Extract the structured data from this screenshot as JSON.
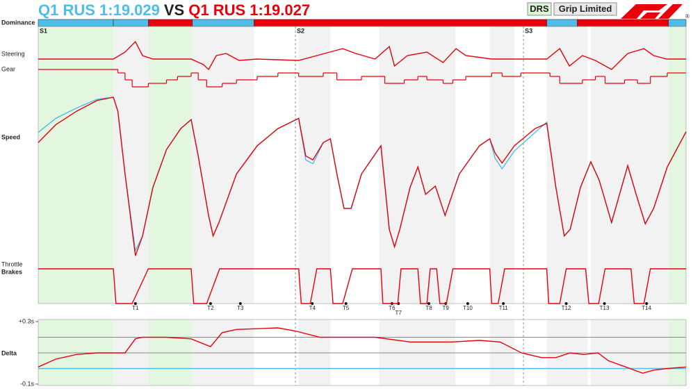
{
  "header": {
    "title_a": "Q1 RUS 1:19.029",
    "vs": "VS",
    "title_b": "Q1 RUS 1:19.027",
    "badges": [
      "DRS",
      "Grip Limited"
    ],
    "mark": "®"
  },
  "chart_data": {
    "type": "telemetry",
    "xlim": [
      0,
      100
    ],
    "sectors": [
      {
        "label": "S1",
        "x": 0
      },
      {
        "label": "S2",
        "x": 39.7
      },
      {
        "label": "S3",
        "x": 74.9
      }
    ],
    "zones": [
      {
        "x": [
          0,
          11.6
        ],
        "color": "#e3f6df"
      },
      {
        "x": [
          11.6,
          17.0
        ],
        "color": "#f2f2f2"
      },
      {
        "x": [
          17.0,
          23.6
        ],
        "color": "#e3f6df"
      },
      {
        "x": [
          23.6,
          33.3
        ],
        "color": "#f2f2f2"
      },
      {
        "x": [
          40.2,
          45.1
        ],
        "color": "#f2f2f2"
      },
      {
        "x": [
          52.6,
          64.4
        ],
        "color": "#f2f2f2"
      },
      {
        "x": [
          69.7,
          73.5
        ],
        "color": "#f2f2f2"
      },
      {
        "x": [
          78.5,
          84.8
        ],
        "color": "#f2f2f2"
      },
      {
        "x": [
          85.3,
          97.3
        ],
        "color": "#f2f2f2"
      },
      {
        "x": [
          97.3,
          100
        ],
        "color": "#e3f6df"
      }
    ],
    "corners": [
      {
        "label": "T1",
        "x": 15.0
      },
      {
        "label": "T2",
        "x": 26.6
      },
      {
        "label": "T3",
        "x": 31.2
      },
      {
        "label": "T4",
        "x": 42.3
      },
      {
        "label": "T5",
        "x": 47.5
      },
      {
        "label": "T6",
        "x": 54.6
      },
      {
        "label": "T7",
        "x": 55.6
      },
      {
        "label": "T8",
        "x": 60.3
      },
      {
        "label": "T9",
        "x": 62.9
      },
      {
        "label": "T10",
        "x": 66.3
      },
      {
        "label": "T11",
        "x": 71.8
      },
      {
        "label": "T12",
        "x": 81.5
      },
      {
        "label": "T13",
        "x": 87.4
      },
      {
        "label": "T14",
        "x": 93.9
      }
    ],
    "dominance": {
      "label": "Dominance",
      "segments": [
        {
          "x": [
            0,
            11.6
          ],
          "color": "#4fbde9"
        },
        {
          "x": [
            11.6,
            17.0
          ],
          "color": "#4fbde9"
        },
        {
          "x": [
            17.0,
            23.8
          ],
          "color": "#e8000b"
        },
        {
          "x": [
            23.8,
            33.3
          ],
          "color": "#4fbde9"
        },
        {
          "x": [
            33.3,
            78.5
          ],
          "color": "#e8000b"
        },
        {
          "x": [
            78.5,
            83.2
          ],
          "color": "#4fbde9"
        },
        {
          "x": [
            83.2,
            97.3
          ],
          "color": "#e8000b"
        },
        {
          "x": [
            97.3,
            100
          ],
          "color": "#4fbde9"
        }
      ]
    },
    "panels": [
      {
        "labels": [
          "Steering"
        ],
        "style": "line",
        "ylim": [
          -25,
          25
        ],
        "series": [
          {
            "color": "#e8000b",
            "x": [
              0,
              11.6,
              13.4,
              15.0,
              16.1,
              17.7,
              23.6,
              25.5,
              26.3,
              27.5,
              29,
              31,
              33.8,
              40.2,
              45,
              47,
              49,
              52,
              54.2,
              55,
              57,
              60,
              62.5,
              64.5,
              66,
              70,
              73.5,
              78.5,
              80.5,
              82,
              84,
              86,
              88.5,
              91,
              93.5,
              95,
              97,
              100
            ],
            "values": [
              0,
              0,
              10,
              25,
              5,
              0,
              0,
              -8,
              -15,
              5,
              8,
              -2,
              0,
              -2,
              10,
              15,
              8,
              0,
              18,
              -10,
              5,
              10,
              -5,
              15,
              5,
              0,
              0,
              0,
              15,
              -10,
              5,
              -2,
              -15,
              8,
              15,
              5,
              0,
              0
            ]
          }
        ]
      },
      {
        "labels": [
          "Gear"
        ],
        "style": "step",
        "ylim": [
          2,
          9
        ],
        "series": [
          {
            "color": "#e8000b",
            "x": [
              0,
              12.3,
              13.4,
              14.5,
              17.0,
              19.8,
              21.5,
              23.6,
              24.7,
              26.0,
              28.4,
              30.6,
              33.8,
              37.0,
              40.2,
              44.0,
              46.1,
              49.9,
              53.5,
              56.5,
              58.6,
              60.0,
              62.5,
              64.0,
              66.0,
              70.0,
              71.6,
              74.5,
              79.0,
              80.5,
              84.0,
              86.0,
              87.5,
              90.5,
              92.5,
              94.5,
              97.1,
              100
            ],
            "values": [
              8,
              7,
              5,
              3,
              4,
              5,
              6,
              7,
              5,
              3,
              4,
              5,
              6,
              7,
              6,
              7,
              5,
              6,
              4,
              5,
              6,
              5,
              4,
              5,
              6,
              7,
              6,
              7,
              6,
              4,
              5,
              6,
              4,
              5,
              4,
              6,
              7,
              7
            ]
          }
        ]
      },
      {
        "labels": [
          "Speed"
        ],
        "style": "line",
        "ylim": [
          60,
          330
        ],
        "series": [
          {
            "color": "#4fbde9",
            "x": [
              0,
              2.7,
              5.9,
              9.1,
              11.6,
              12.3,
              13.4,
              15.0,
              16.1,
              17.7,
              19.8,
              22.0,
              23.6,
              24.7,
              26.3,
              27.0,
              27.9,
              30.6,
              33.8,
              37.0,
              40.2,
              41.3,
              42.4,
              44.0,
              45.1,
              46.1,
              47.2,
              48.3,
              49.9,
              52.9,
              54.2,
              55.0,
              55.8,
              57.4,
              58.6,
              59.8,
              61.3,
              62.8,
              65.0,
              68.1,
              69.7,
              70.5,
              71.6,
              73.5,
              76.7,
              78.5,
              79.9,
              81.2,
              82.1,
              83.7,
              85.3,
              86.6,
              88.5,
              91.0,
              92.3,
              93.7,
              95.0,
              97.1,
              100
            ],
            "values": [
              265,
              287,
              303,
              317,
              320,
              298,
              200,
              80,
              103,
              179,
              238,
              271,
              285,
              228,
              135,
              103,
              124,
              200,
              244,
              271,
              287,
              222,
              216,
              249,
              255,
              200,
              146,
              146,
              200,
              244,
              113,
              86,
              113,
              179,
              211,
              168,
              181,
              135,
              200,
              244,
              255,
              225,
              208,
              236,
              265,
              281,
              179,
              103,
              113,
              179,
              219,
              190,
              124,
              213,
              168,
              122,
              146,
              211,
              266
            ]
          },
          {
            "color": "#e8000b",
            "x": [
              0,
              2.7,
              5.9,
              9.1,
              11.6,
              12.3,
              13.4,
              15.0,
              16.1,
              17.7,
              19.8,
              22.0,
              23.6,
              24.7,
              26.3,
              27.0,
              27.9,
              30.6,
              33.8,
              37.0,
              40.2,
              41.3,
              42.4,
              44.0,
              45.1,
              46.1,
              47.2,
              48.3,
              49.9,
              52.9,
              54.2,
              55.0,
              55.8,
              57.4,
              58.6,
              59.8,
              61.3,
              62.8,
              65.0,
              68.1,
              69.7,
              70.5,
              71.6,
              73.5,
              76.7,
              78.5,
              79.9,
              81.2,
              82.1,
              83.7,
              85.3,
              86.6,
              88.5,
              91.0,
              92.3,
              93.7,
              95.0,
              97.1,
              100
            ],
            "values": [
              249,
              277,
              298,
              315,
              320,
              298,
              200,
              72,
              103,
              179,
              238,
              271,
              285,
              228,
              135,
              103,
              124,
              200,
              244,
              271,
              287,
              228,
              222,
              249,
              255,
              200,
              146,
              146,
              200,
              244,
              113,
              86,
              113,
              179,
              211,
              168,
              181,
              135,
              200,
              244,
              255,
              233,
              217,
              244,
              271,
              279,
              179,
              103,
              113,
              179,
              219,
              190,
              124,
              213,
              168,
              122,
              146,
              211,
              266
            ]
          }
        ]
      },
      {
        "labels": [
          "Throttle",
          "Brakes"
        ],
        "style": "line",
        "ylim": [
          0,
          100
        ],
        "series": [
          {
            "color": "#e8000b",
            "x": [
              0,
              11.6,
              12.0,
              13.4,
              14.5,
              16.0,
              17.0,
              23.6,
              24.0,
              26.0,
              28.0,
              40.2,
              40.6,
              42.0,
              43,
              45.1,
              45.5,
              47.0,
              48.5,
              52.9,
              53.2,
              55.5,
              56.0,
              58.6,
              59.0,
              60.0,
              60.5,
              61.5,
              62.0,
              63.0,
              64.0,
              69.7,
              70.0,
              71.0,
              72.0,
              78.5,
              78.8,
              80.5,
              81.5,
              84.5,
              85.0,
              86.5,
              87.5,
              91.5,
              92,
              93.5,
              94.5,
              100
            ],
            "values": [
              100,
              100,
              0,
              0,
              0,
              60,
              100,
              100,
              0,
              0,
              100,
              100,
              0,
              0,
              100,
              100,
              0,
              0,
              100,
              100,
              0,
              0,
              100,
              100,
              0,
              0,
              100,
              100,
              0,
              0,
              100,
              100,
              0,
              0,
              100,
              100,
              0,
              0,
              100,
              100,
              0,
              0,
              100,
              100,
              0,
              0,
              100,
              100
            ]
          }
        ]
      },
      {
        "labels": [
          "Delta"
        ],
        "style": "line",
        "ylim": [
          -0.1,
          0.3
        ],
        "yticks": [
          {
            "value": 0.3,
            "label": "+0.3s"
          },
          {
            "value": -0.1,
            "label": "-0.1s"
          }
        ],
        "gridlines": [
          0,
          0.1,
          0.2
        ],
        "series": [
          {
            "color": "#4fbde9",
            "x": [
              0,
              100
            ],
            "values": [
              0,
              0
            ]
          },
          {
            "color": "#e8000b",
            "x": [
              0,
              2.7,
              5.9,
              9.1,
              11.6,
              13.4,
              15.0,
              16.1,
              19.8,
              23.6,
              26.6,
              28.4,
              30.6,
              37.0,
              39.7,
              43.5,
              47.7,
              52.0,
              57.4,
              63.8,
              68.1,
              71.3,
              74.6,
              77.7,
              79.9,
              82.1,
              84.2,
              86.4,
              88.0,
              90.7,
              93.3,
              95.0,
              97.1,
              100
            ],
            "values": [
              0.01,
              0.06,
              0.09,
              0.1,
              0.1,
              0.1,
              0.19,
              0.2,
              0.2,
              0.19,
              0.14,
              0.23,
              0.25,
              0.26,
              0.24,
              0.2,
              0.2,
              0.2,
              0.17,
              0.17,
              0.18,
              0.17,
              0.1,
              0.07,
              0.07,
              0.1,
              0.09,
              0.1,
              0.05,
              0.01,
              -0.03,
              -0.01,
              0.0,
              0.01
            ]
          }
        ]
      }
    ]
  }
}
